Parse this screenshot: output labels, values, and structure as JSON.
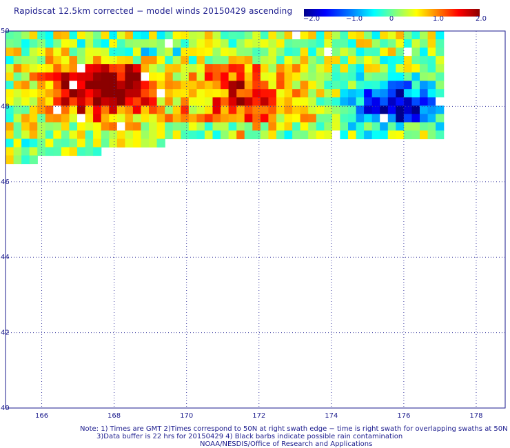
{
  "title": "Rapidscat 12.5km corrected − model winds 20150429 ascending",
  "colorbar": {
    "min": -2.0,
    "max": 2.0,
    "tick_labels": [
      "−2.0",
      "−1.0",
      "0",
      "1.0",
      "2.0"
    ],
    "tick_values": [
      -2.0,
      -1.0,
      0,
      1.0,
      2.0
    ],
    "colors": [
      "#00008b",
      "#0000ff",
      "#0080ff",
      "#00ffff",
      "#80ff80",
      "#ffff00",
      "#ff8000",
      "#ff0000",
      "#8b0000"
    ]
  },
  "chart_data": {
    "type": "heatmap",
    "x_ticks": [
      "166",
      "168",
      "170",
      "172",
      "174",
      "176",
      "178"
    ],
    "y_ticks": [
      "50",
      "48",
      "46",
      "44",
      "42",
      "40"
    ],
    "x_tick_values": [
      166,
      168,
      170,
      172,
      174,
      176,
      178
    ],
    "y_tick_values": [
      50,
      48,
      46,
      44,
      42,
      40
    ],
    "xlim": [
      165,
      178.8
    ],
    "ylim": [
      40,
      50
    ],
    "grid": "dotted",
    "swath_extent": {
      "lon": [
        165,
        177.1
      ],
      "lat_north": 50,
      "lat_south_west": 46.6,
      "lat_south_east": 47.3
    },
    "data_features": [
      {
        "name": "strong positive difference core",
        "lon": [
          165.6,
          169.6
        ],
        "lat": [
          47.6,
          49.6
        ],
        "value": 2.0
      },
      {
        "name": "positive band",
        "lon": [
          169.5,
          173.5
        ],
        "lat": [
          47.3,
          49.5
        ],
        "value": 1.2
      },
      {
        "name": "negative difference core",
        "lon": [
          174.2,
          177.1
        ],
        "lat": [
          47.3,
          48.9
        ],
        "value": -2.0
      },
      {
        "name": "weak negative region north",
        "lon": [
          166.0,
          171.0
        ],
        "lat": [
          49.2,
          50.0
        ],
        "value": -0.6
      }
    ]
  },
  "notes": [
    "Note: 1) Times are GMT 2)Times correspond to 50N at right swath edge − time is right swath for overlapping swaths at 50N",
    "3)Data buffer is 22 hrs for 20150429 4) Black barbs indicate possible rain contamination",
    "NOAA/NESDIS/Office of Research and Applications"
  ]
}
